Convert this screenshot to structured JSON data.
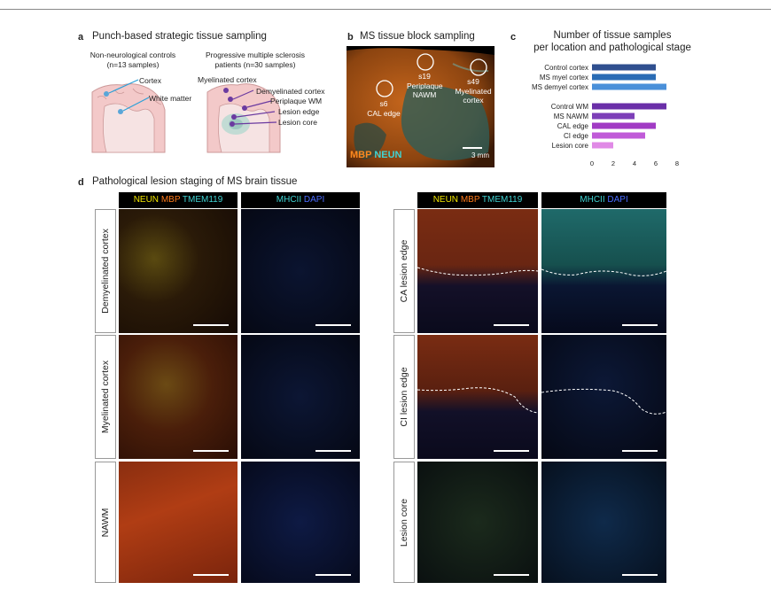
{
  "panel_a": {
    "letter": "a",
    "title": "Punch-based strategic tissue sampling",
    "controls_heading_l1": "Non-neurological controls",
    "controls_heading_l2": "(n=13 samples)",
    "ms_heading_l1": "Progressive multiple sclerosis",
    "ms_heading_l2": "patients (n=30 samples)",
    "labels": [
      "Cortex",
      "White matter",
      "Myelinated cortex",
      "Demyelinated cortex",
      "Periplaque WM",
      "Lesion edge",
      "Lesion core"
    ]
  },
  "panel_b": {
    "letter": "b",
    "title": "MS tissue block sampling",
    "samples": [
      {
        "id": "s6",
        "label": "CAL edge"
      },
      {
        "id": "s19",
        "label": "Periplaque NAWM"
      },
      {
        "id": "s49",
        "label": "Myelinated cortex"
      }
    ],
    "stain_mbp": "MBP",
    "stain_neun": "NEUN",
    "scalebar": "3 mm"
  },
  "panel_c": {
    "letter": "c",
    "title_l1": "Number of tissue samples",
    "title_l2": "per location and pathological stage"
  },
  "chart_data": {
    "type": "bar",
    "orientation": "horizontal",
    "title": "Number of tissue samples per location and pathological stage",
    "categories": [
      "Control cortex",
      "MS myel cortex",
      "MS demyel cortex",
      "Control WM",
      "MS NAWM",
      "CAL edge",
      "CI edge",
      "Lesion core"
    ],
    "values": [
      6,
      6,
      7,
      7,
      4,
      6,
      5,
      2
    ],
    "colors": [
      "#2f4f8f",
      "#2a6cb5",
      "#4a90d9",
      "#6a2fa8",
      "#7d3fb8",
      "#a13bc4",
      "#c05bd8",
      "#e08ae6"
    ],
    "xlim": [
      0,
      8
    ],
    "xticks": [
      "0",
      "2",
      "4",
      "6",
      "8"
    ],
    "grid": false
  },
  "panel_d": {
    "letter": "d",
    "title": "Pathological lesion staging of MS brain tissue",
    "left_rows": [
      "Demyelinated cortex",
      "Myelinated cortex",
      "NAWM"
    ],
    "right_rows": [
      "CA lesion edge",
      "CI lesion edge",
      "Lesion core"
    ],
    "headers": {
      "neun": "NEUN",
      "mbp": "MBP",
      "tmem": "TMEM119",
      "mhcii": "MHCII",
      "dapi": "DAPI"
    },
    "colors": {
      "neun": "#f2e600",
      "mbp": "#ff7a1a",
      "tmem": "#3fd3d3",
      "mhcii": "#3fd3d3",
      "dapi": "#4a6cff"
    }
  }
}
